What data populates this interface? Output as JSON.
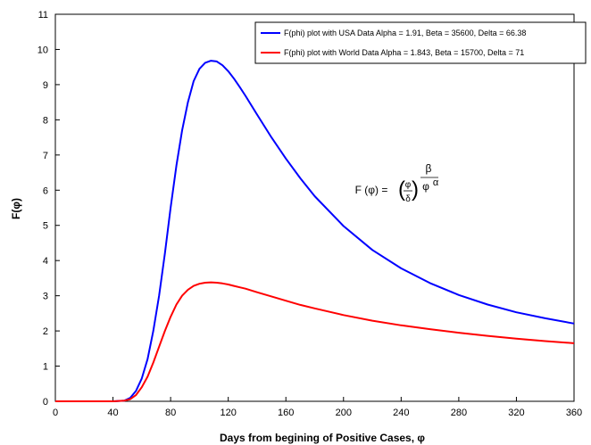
{
  "chart_data": {
    "type": "line",
    "xlabel": "Days from begining of Positive Cases, φ",
    "ylabel": "F(φ)",
    "xlim": [
      0,
      360
    ],
    "ylim": [
      0,
      11
    ],
    "x_ticks": [
      "0",
      "40",
      "80",
      "120",
      "160",
      "200",
      "240",
      "280",
      "320",
      "360"
    ],
    "y_ticks": [
      "0",
      "1",
      "2",
      "3",
      "4",
      "5",
      "6",
      "7",
      "8",
      "9",
      "10",
      "11"
    ],
    "grid": false,
    "legend_position": "top-right",
    "x": [
      0,
      10,
      20,
      30,
      40,
      48,
      52,
      56,
      60,
      64,
      68,
      72,
      76,
      80,
      84,
      88,
      92,
      96,
      100,
      104,
      108,
      112,
      116,
      120,
      124,
      128,
      132,
      140,
      150,
      160,
      170,
      180,
      200,
      220,
      240,
      260,
      280,
      300,
      320,
      340,
      360
    ],
    "series": [
      {
        "name": "F(phi) plot with USA Data Alpha = 1.91, Beta = 35600, Delta = 66.38",
        "color": "#0000ff",
        "values": [
          0,
          0,
          0,
          0,
          0,
          0.02,
          0.1,
          0.3,
          0.65,
          1.2,
          2.0,
          3.0,
          4.2,
          5.5,
          6.7,
          7.7,
          8.5,
          9.1,
          9.45,
          9.62,
          9.68,
          9.66,
          9.55,
          9.38,
          9.17,
          8.93,
          8.68,
          8.15,
          7.5,
          6.9,
          6.34,
          5.83,
          4.98,
          4.3,
          3.78,
          3.36,
          3.02,
          2.75,
          2.53,
          2.36,
          2.21
        ]
      },
      {
        "name": "F(phi) plot with World Data Alpha = 1.843, Beta = 15700, Delta = 71",
        "color": "#ff0000",
        "values": [
          0,
          0,
          0,
          0,
          0,
          0.02,
          0.06,
          0.18,
          0.4,
          0.7,
          1.1,
          1.55,
          2.0,
          2.4,
          2.75,
          3.0,
          3.17,
          3.28,
          3.34,
          3.37,
          3.38,
          3.37,
          3.35,
          3.32,
          3.28,
          3.24,
          3.2,
          3.1,
          2.98,
          2.86,
          2.74,
          2.64,
          2.45,
          2.29,
          2.16,
          2.05,
          1.95,
          1.86,
          1.78,
          1.71,
          1.65
        ]
      }
    ],
    "annotation": {
      "lhs": "F (φ) =",
      "num": "φ",
      "den": "δ",
      "beta": "β",
      "base": "φ",
      "alpha": "α"
    }
  }
}
